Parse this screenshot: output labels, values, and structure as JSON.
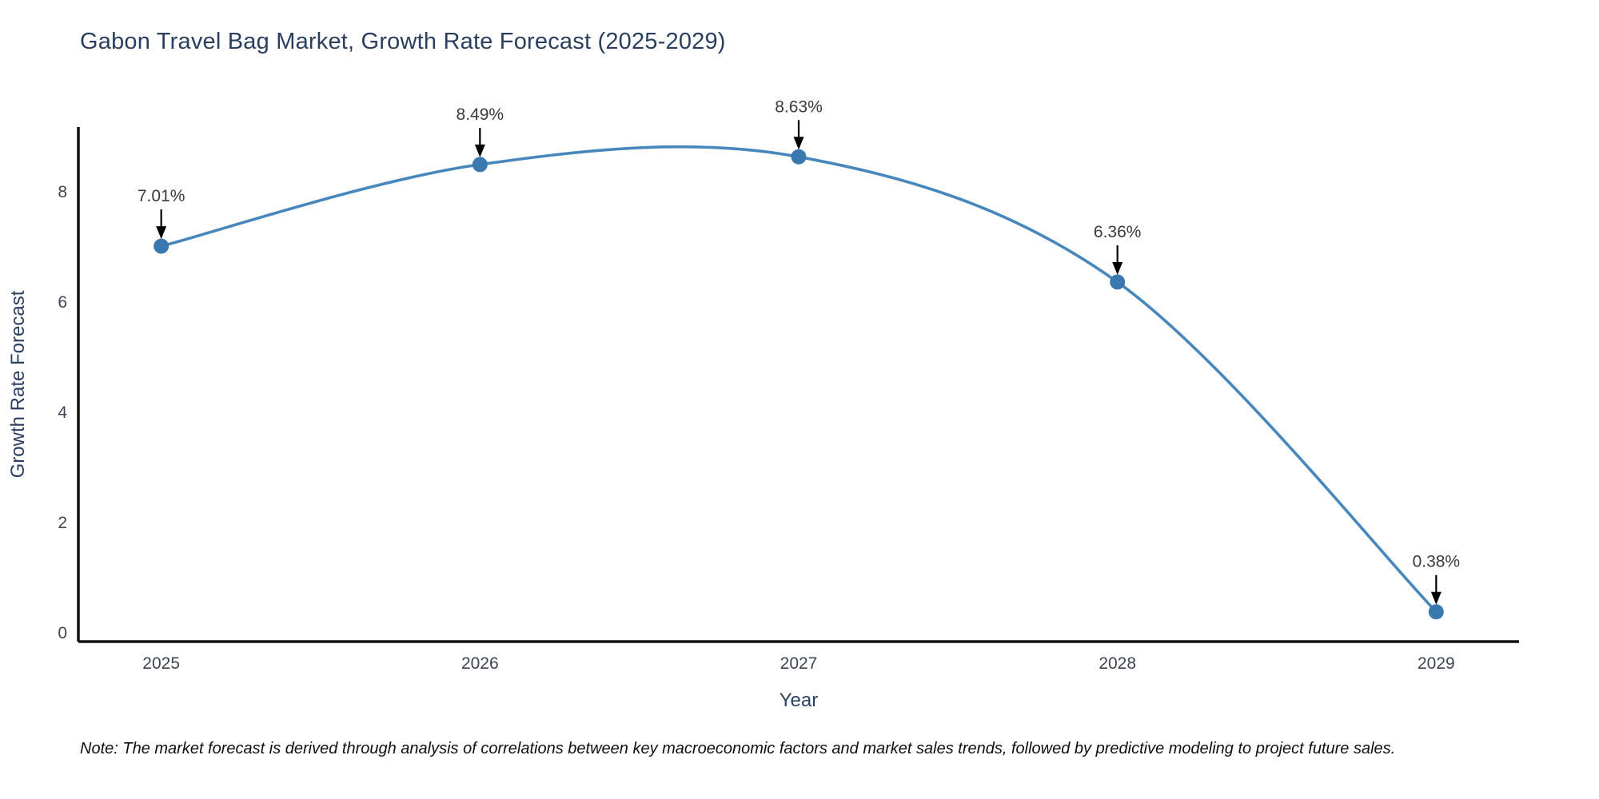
{
  "title": "Gabon Travel Bag Market, Growth Rate Forecast (2025-2029)",
  "note": "Note: The market forecast is derived through analysis of correlations between key macroeconomic factors and market sales trends, followed by predictive modeling to project future sales.",
  "chart_data": {
    "type": "line",
    "line_shape": "spline",
    "title": "Gabon Travel Bag Market, Growth Rate Forecast (2025-2029)",
    "xlabel": "Year",
    "ylabel": "Growth Rate Forecast",
    "x": [
      2025,
      2026,
      2027,
      2028,
      2029
    ],
    "values": [
      7.01,
      8.49,
      8.63,
      6.36,
      0.38
    ],
    "point_labels": [
      "7.01%",
      "8.49%",
      "8.63%",
      "6.36%",
      "0.38%"
    ],
    "xticks": [
      "2025",
      "2026",
      "2027",
      "2028",
      "2029"
    ],
    "yticks": [
      0,
      2,
      4,
      6,
      8
    ],
    "xlim": [
      2024.74,
      2029.26
    ],
    "ylim": [
      -0.16,
      9.17
    ],
    "grid": false,
    "legend": "none",
    "annotation_style": "label-above-with-down-arrow",
    "colors": {
      "line": "#4787bd",
      "marker": "#3a78b0",
      "arrow": "#000000",
      "axis_line": "#111111",
      "tick_label": "#3d4552",
      "axis_title": "#2a3f5f",
      "chart_title": "#2a3f5f",
      "annotation_text": "#3a3a3a",
      "background": "#ffffff"
    }
  }
}
